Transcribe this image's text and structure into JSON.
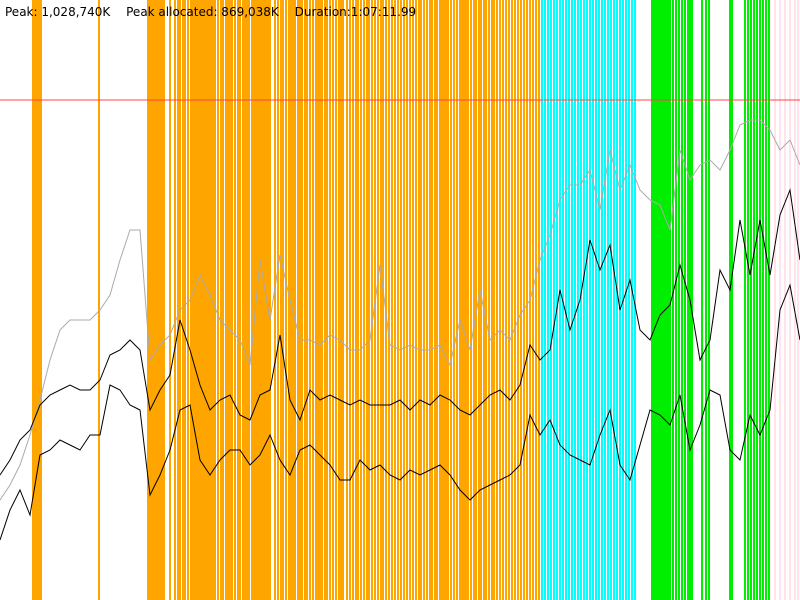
{
  "header": {
    "peak": "Peak: 1,028,740K",
    "peak_allocated": "Peak allocated: 869,038K",
    "duration": "Duration:1:07:11.99"
  },
  "chart_data": {
    "type": "line",
    "xlim": [
      0,
      800
    ],
    "ylim": [
      0,
      1200000
    ],
    "grid": false,
    "colors": {
      "peak_line": "#ff4444",
      "gray_series": "#aaaaaa",
      "black_series": "#000000",
      "events_orange": "#ffa500",
      "events_cyan": "#00ffff",
      "events_green": "#00ee00",
      "events_pink": "#ffc8d8"
    },
    "peak_value": 1000000,
    "events": [
      {
        "kind": "orange",
        "x": [
          33,
          35,
          37,
          39,
          41,
          99,
          148,
          150,
          152,
          154,
          156,
          158,
          160,
          162,
          164,
          170,
          175,
          178,
          180,
          183,
          185,
          188,
          191,
          193,
          195,
          197,
          199,
          201,
          203,
          205,
          207,
          209,
          211,
          213,
          215,
          218,
          221,
          223,
          226,
          228,
          230,
          232,
          235,
          238,
          240,
          243,
          245,
          247,
          249,
          252,
          254,
          256,
          258,
          260,
          262,
          264,
          266,
          268,
          270,
          275,
          278,
          281,
          283,
          286,
          289,
          291,
          293,
          295,
          298,
          300,
          302,
          305,
          307,
          310,
          313,
          316,
          318,
          320,
          322,
          325,
          327,
          330,
          333,
          336,
          339,
          341,
          343,
          347,
          350,
          353,
          356,
          358,
          361,
          364,
          367,
          369,
          372,
          375,
          378,
          381,
          383,
          386,
          389,
          392,
          395,
          398,
          401,
          404,
          407,
          410,
          413,
          416,
          419,
          421,
          424,
          427,
          430,
          432,
          435,
          437,
          440,
          442,
          444,
          446,
          448,
          451,
          454,
          457,
          460,
          462,
          464,
          466,
          468,
          471,
          474,
          476,
          479,
          481,
          484,
          486,
          489,
          492,
          494,
          497,
          500,
          503,
          506,
          509,
          512,
          515,
          518,
          521,
          524,
          527,
          530,
          533,
          536,
          539
        ]
      },
      {
        "kind": "cyan",
        "x": [
          542,
          545,
          548,
          551,
          554,
          557,
          560,
          563,
          566,
          569,
          572,
          575,
          578,
          581,
          584,
          587,
          590,
          593,
          596,
          599,
          602,
          605,
          608,
          611,
          614,
          617,
          620,
          623,
          626,
          629,
          632,
          635
        ]
      },
      {
        "kind": "green",
        "x": [
          652,
          654,
          656,
          658,
          660,
          662,
          664,
          666,
          668,
          670,
          673,
          676,
          679,
          682,
          685,
          688,
          690,
          692,
          702,
          706,
          709,
          730,
          732,
          745,
          748,
          751,
          754,
          757,
          760,
          763,
          766,
          769
        ]
      },
      {
        "kind": "pink",
        "x": [
          775,
          780,
          785,
          790,
          795,
          798
        ]
      }
    ],
    "series": [
      {
        "name": "",
        "color": "gray",
        "x": [
          0,
          10,
          20,
          30,
          40,
          50,
          60,
          70,
          80,
          90,
          100,
          110,
          120,
          130,
          140,
          150,
          160,
          170,
          180,
          190,
          200,
          210,
          220,
          230,
          240,
          250,
          260,
          270,
          280,
          290,
          300,
          310,
          320,
          330,
          340,
          350,
          360,
          370,
          380,
          390,
          400,
          410,
          420,
          430,
          440,
          450,
          460,
          470,
          480,
          490,
          500,
          510,
          520,
          530,
          540,
          550,
          560,
          570,
          580,
          590,
          600,
          610,
          620,
          630,
          640,
          650,
          660,
          670,
          680,
          690,
          700,
          710,
          720,
          730,
          740,
          750,
          760,
          770,
          780,
          790,
          800
        ],
        "y": [
          200000,
          230000,
          270000,
          330000,
          400000,
          480000,
          540000,
          560000,
          560000,
          560000,
          580000,
          610000,
          680000,
          740000,
          740000,
          480000,
          510000,
          530000,
          580000,
          600000,
          650000,
          610000,
          560000,
          540000,
          520000,
          470000,
          680000,
          560000,
          690000,
          600000,
          520000,
          520000,
          510000,
          530000,
          520000,
          500000,
          500000,
          520000,
          670000,
          510000,
          500000,
          510000,
          500000,
          500000,
          510000,
          470000,
          560000,
          500000,
          620000,
          520000,
          540000,
          520000,
          570000,
          600000,
          680000,
          730000,
          800000,
          830000,
          830000,
          860000,
          780000,
          900000,
          820000,
          870000,
          820000,
          800000,
          790000,
          740000,
          900000,
          840000,
          870000,
          880000,
          860000,
          900000,
          950000,
          960000,
          960000,
          940000,
          900000,
          920000,
          870000
        ]
      },
      {
        "name": "",
        "color": "black",
        "x": [
          0,
          10,
          20,
          30,
          40,
          50,
          60,
          70,
          80,
          90,
          100,
          110,
          120,
          130,
          140,
          150,
          160,
          170,
          180,
          190,
          200,
          210,
          220,
          230,
          240,
          250,
          260,
          270,
          280,
          290,
          300,
          310,
          320,
          330,
          340,
          350,
          360,
          370,
          380,
          390,
          400,
          410,
          420,
          430,
          440,
          450,
          460,
          470,
          480,
          490,
          500,
          510,
          520,
          530,
          540,
          550,
          560,
          570,
          580,
          590,
          600,
          610,
          620,
          630,
          640,
          650,
          660,
          670,
          680,
          690,
          700,
          710,
          720,
          730,
          740,
          750,
          760,
          770,
          780,
          790,
          800
        ],
        "y": [
          120000,
          180000,
          220000,
          170000,
          290000,
          300000,
          320000,
          310000,
          300000,
          330000,
          330000,
          430000,
          420000,
          390000,
          380000,
          210000,
          250000,
          300000,
          380000,
          390000,
          280000,
          250000,
          280000,
          300000,
          300000,
          270000,
          290000,
          330000,
          280000,
          250000,
          300000,
          310000,
          290000,
          270000,
          240000,
          240000,
          280000,
          260000,
          270000,
          250000,
          240000,
          260000,
          250000,
          260000,
          270000,
          250000,
          220000,
          200000,
          220000,
          230000,
          240000,
          250000,
          270000,
          370000,
          330000,
          360000,
          310000,
          290000,
          280000,
          270000,
          330000,
          380000,
          270000,
          240000,
          310000,
          380000,
          370000,
          350000,
          410000,
          300000,
          350000,
          420000,
          410000,
          300000,
          280000,
          370000,
          330000,
          380000,
          580000,
          630000,
          520000
        ]
      },
      {
        "name": "",
        "color": "black",
        "x": [
          0,
          10,
          20,
          30,
          40,
          50,
          60,
          70,
          80,
          90,
          100,
          110,
          120,
          130,
          140,
          150,
          160,
          170,
          180,
          190,
          200,
          210,
          220,
          230,
          240,
          250,
          260,
          270,
          280,
          290,
          300,
          310,
          320,
          330,
          340,
          350,
          360,
          370,
          380,
          390,
          400,
          410,
          420,
          430,
          440,
          450,
          460,
          470,
          480,
          490,
          500,
          510,
          520,
          530,
          540,
          550,
          560,
          570,
          580,
          590,
          600,
          610,
          620,
          630,
          640,
          650,
          660,
          670,
          680,
          690,
          700,
          710,
          720,
          730,
          740,
          750,
          760,
          770,
          780,
          790,
          800
        ],
        "y": [
          250000,
          280000,
          320000,
          340000,
          390000,
          410000,
          420000,
          430000,
          420000,
          420000,
          440000,
          490000,
          500000,
          520000,
          500000,
          380000,
          420000,
          450000,
          560000,
          500000,
          430000,
          380000,
          400000,
          410000,
          370000,
          360000,
          410000,
          420000,
          530000,
          400000,
          360000,
          420000,
          400000,
          410000,
          400000,
          390000,
          400000,
          390000,
          390000,
          390000,
          400000,
          380000,
          400000,
          390000,
          410000,
          400000,
          380000,
          370000,
          390000,
          410000,
          420000,
          400000,
          430000,
          510000,
          480000,
          500000,
          620000,
          540000,
          600000,
          720000,
          660000,
          710000,
          580000,
          640000,
          540000,
          520000,
          570000,
          590000,
          670000,
          600000,
          480000,
          520000,
          660000,
          620000,
          760000,
          650000,
          760000,
          650000,
          770000,
          820000,
          680000
        ]
      }
    ]
  }
}
